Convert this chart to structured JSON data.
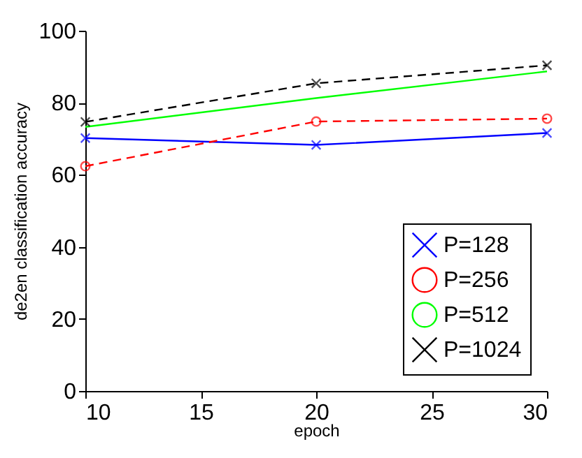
{
  "chart_data": {
    "type": "line",
    "xlabel": "epoch",
    "ylabel": "de2en classification accuracy",
    "x": [
      10,
      20,
      30
    ],
    "xlim": [
      10,
      30
    ],
    "xticks": [
      10,
      15,
      20,
      25,
      30
    ],
    "ylim": [
      0,
      100
    ],
    "yticks": [
      0,
      20,
      40,
      60,
      80,
      100
    ],
    "grid": false,
    "legend": "bottom right",
    "series": [
      {
        "name": "P=128",
        "color": "#0000ff",
        "values": [
          70.2,
          68.3,
          71.6
        ],
        "marker": "cross",
        "line_style": "solid"
      },
      {
        "name": "P=256",
        "color": "#ff0000",
        "values": [
          62.4,
          74.8,
          75.6
        ],
        "marker": "circle",
        "line_style": "dashed"
      },
      {
        "name": "P=512",
        "color": "#00ff00",
        "values": [
          73.3,
          81.3,
          88.7
        ],
        "marker": "none",
        "line_style": "solid"
      },
      {
        "name": "P=1024",
        "color": "#000000",
        "values": [
          74.7,
          85.4,
          90.4
        ],
        "marker": "cross",
        "line_style": "dashed"
      }
    ]
  }
}
